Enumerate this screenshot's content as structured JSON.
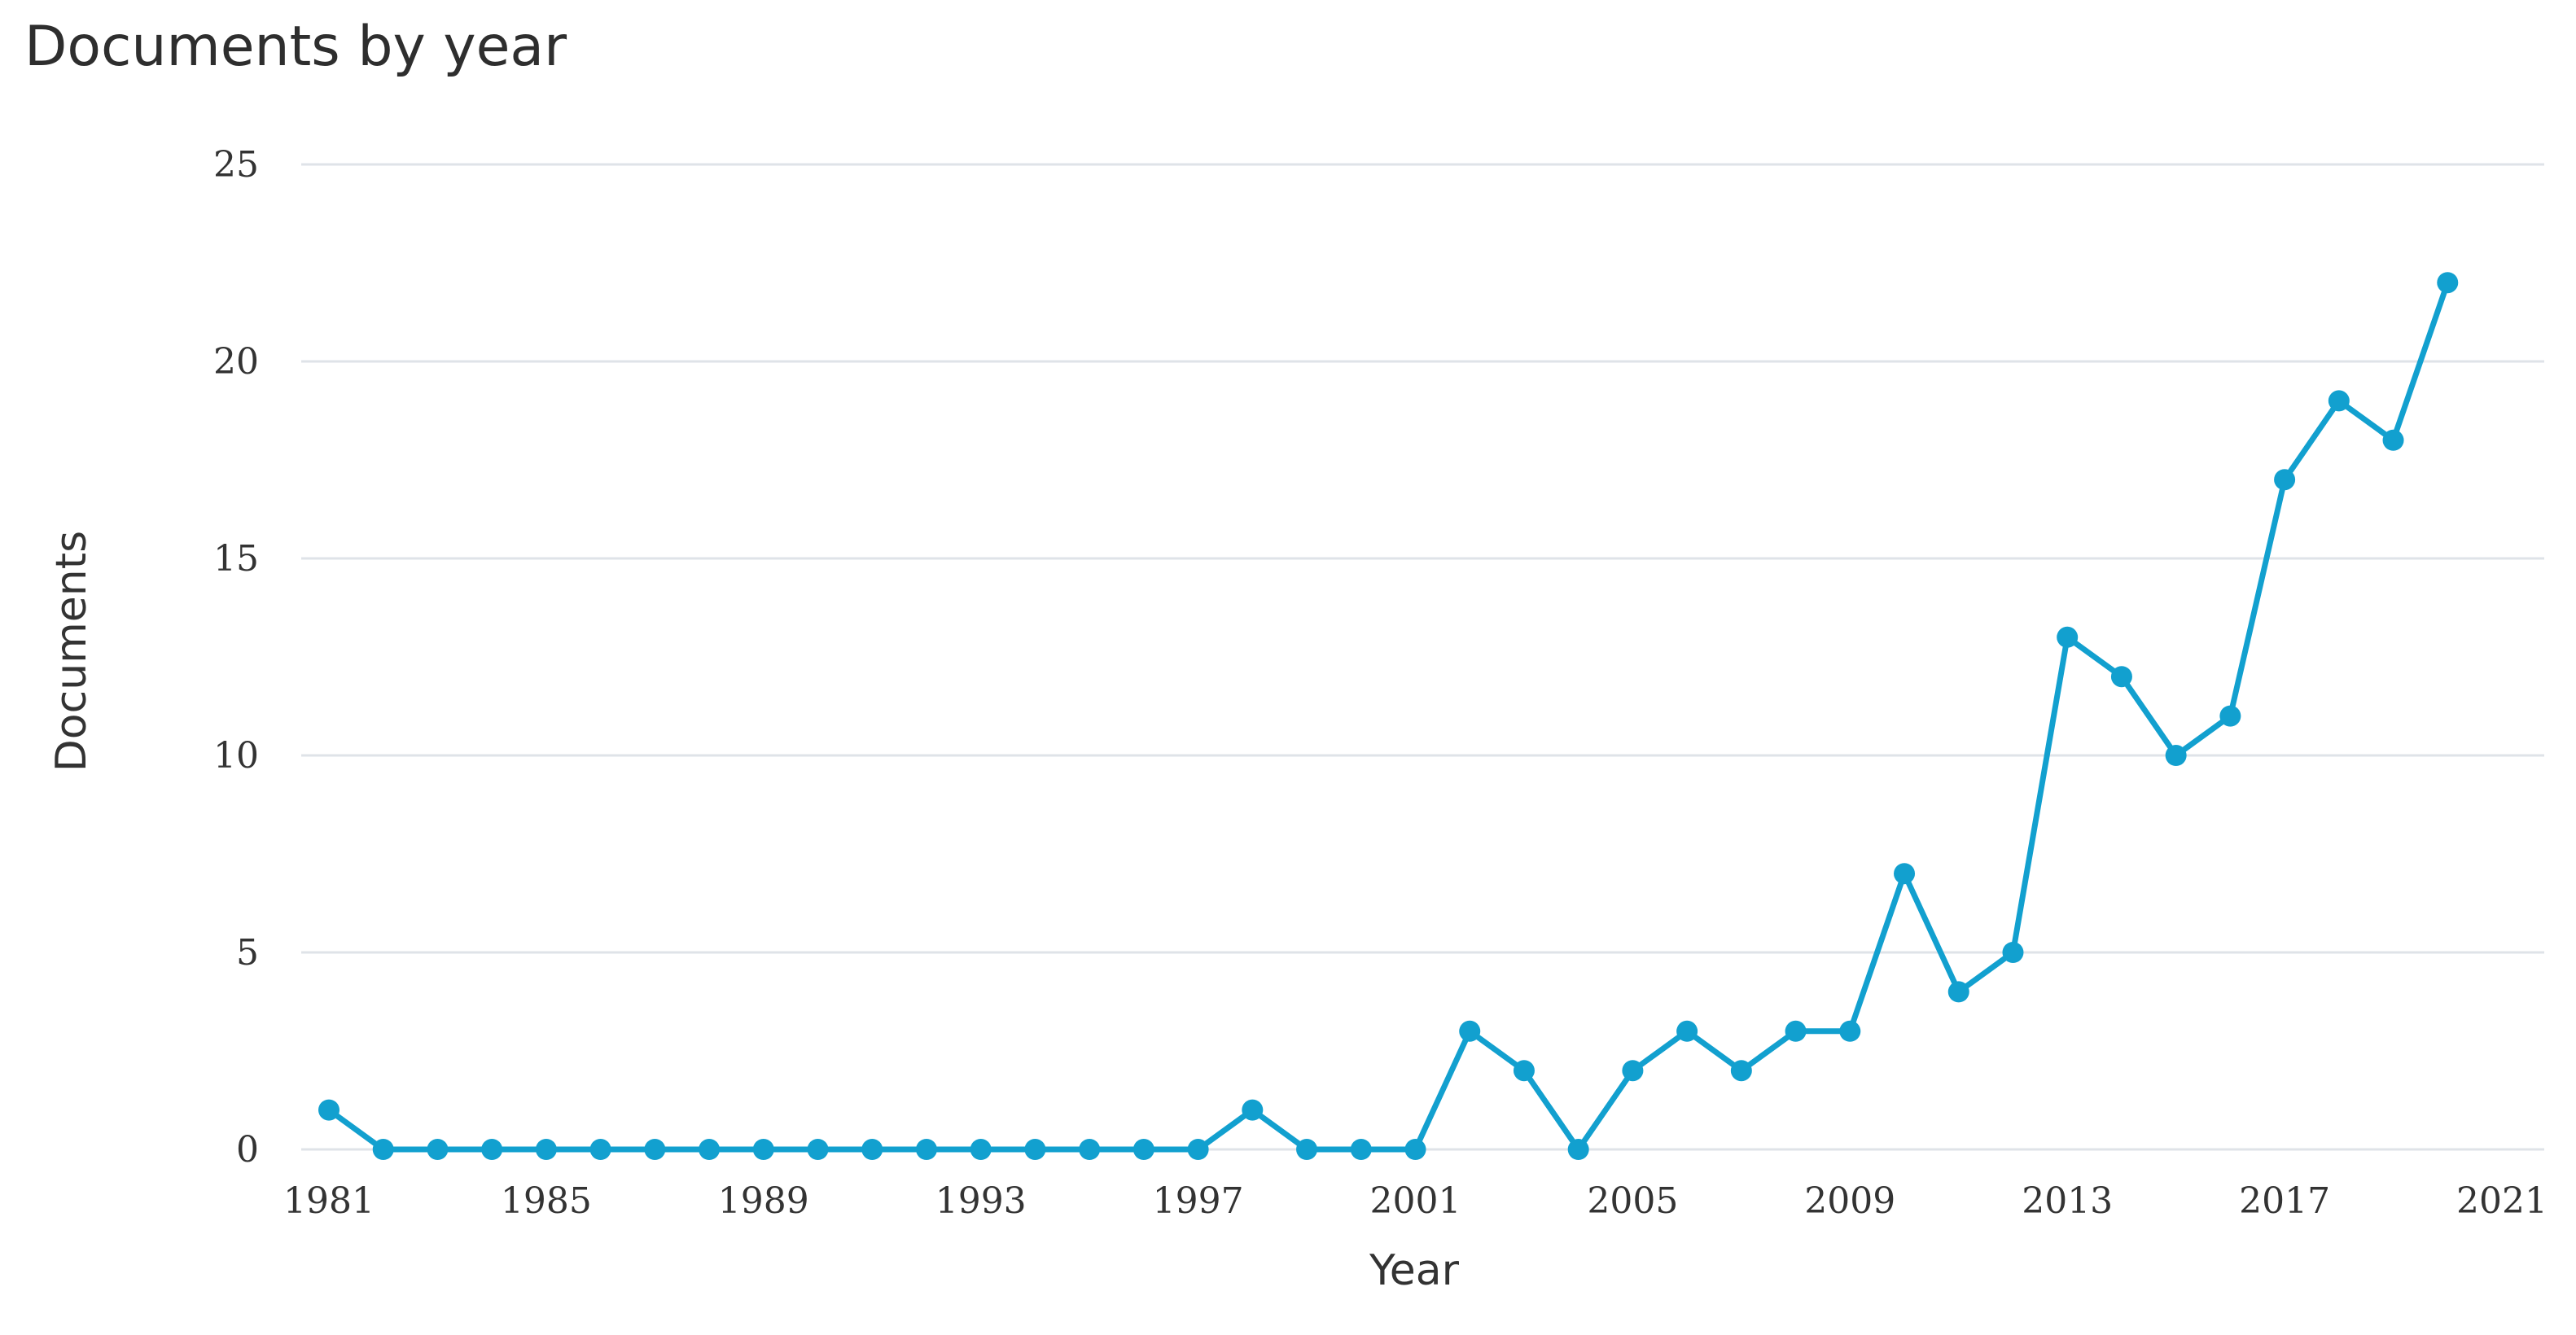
{
  "chart_data": {
    "type": "line",
    "title": "Documents by year",
    "xlabel": "Year",
    "ylabel": "Documents",
    "x": [
      1981,
      1982,
      1983,
      1984,
      1985,
      1986,
      1987,
      1988,
      1989,
      1990,
      1991,
      1992,
      1993,
      1994,
      1995,
      1996,
      1997,
      1998,
      1999,
      2000,
      2001,
      2002,
      2003,
      2004,
      2005,
      2006,
      2007,
      2008,
      2009,
      2010,
      2011,
      2012,
      2013,
      2014,
      2015,
      2016,
      2017,
      2018,
      2019,
      2020
    ],
    "series": [
      {
        "values": [
          1,
          0,
          0,
          0,
          0,
          0,
          0,
          0,
          0,
          0,
          0,
          0,
          0,
          0,
          0,
          0,
          0,
          1,
          0,
          0,
          0,
          3,
          2,
          0,
          2,
          3,
          2,
          3,
          3,
          7,
          4,
          5,
          13,
          12,
          10,
          11,
          17,
          19,
          18,
          22
        ],
        "color": "#12a0cf"
      }
    ],
    "xlim": [
      1981,
      2021
    ],
    "ylim": [
      0,
      25
    ],
    "xticks": [
      1981,
      1985,
      1989,
      1993,
      1997,
      2001,
      2005,
      2009,
      2013,
      2017,
      2021
    ],
    "yticks": [
      0,
      5,
      10,
      15,
      20,
      25
    ],
    "grid": true,
    "gridline_color": "#dfe3e8",
    "legend": "none"
  }
}
